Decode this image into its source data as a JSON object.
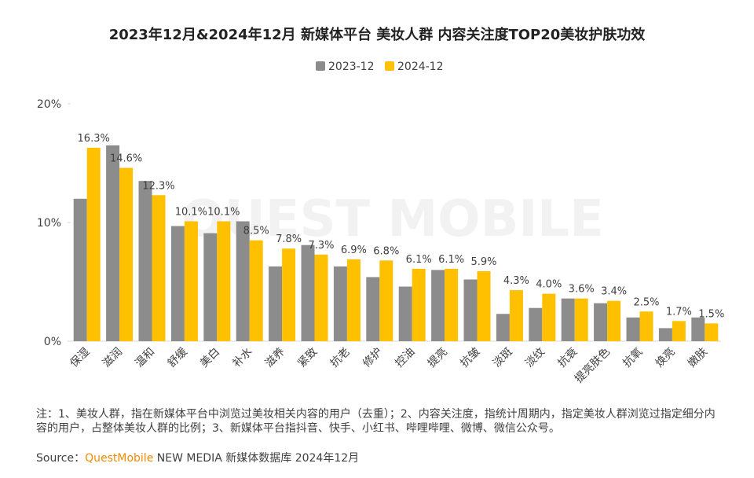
{
  "chart_data": {
    "type": "bar",
    "title": "2023年12月&2024年12月 新媒体平台 美妆人群 内容关注度TOP20美妆护肤功效",
    "categories": [
      "保湿",
      "滋润",
      "温和",
      "舒缓",
      "美白",
      "补水",
      "滋养",
      "紧致",
      "抗老",
      "修护",
      "控油",
      "提亮",
      "抗皱",
      "淡斑",
      "淡纹",
      "抗衰",
      "提亮肤色",
      "抗氧",
      "焕亮",
      "嫩肤"
    ],
    "series": [
      {
        "name": "2023-12",
        "color": "#8c8c8c",
        "values": [
          12.0,
          16.5,
          13.5,
          9.7,
          9.1,
          10.1,
          6.3,
          8.1,
          6.3,
          5.4,
          4.6,
          6.0,
          5.2,
          2.3,
          2.8,
          3.6,
          3.2,
          2.0,
          1.1,
          2.0
        ]
      },
      {
        "name": "2024-12",
        "color": "#ffc000",
        "values": [
          16.3,
          14.6,
          12.3,
          10.1,
          10.1,
          8.5,
          7.8,
          7.3,
          6.9,
          6.8,
          6.1,
          6.1,
          5.9,
          4.3,
          4.0,
          3.6,
          3.4,
          2.5,
          1.7,
          1.5
        ],
        "value_labels": [
          "16.3%",
          "14.6%",
          "12.3%",
          "10.1%",
          "10.1%",
          "8.5%",
          "7.8%",
          "7.3%",
          "6.9%",
          "6.8%",
          "6.1%",
          "6.1%",
          "5.9%",
          "4.3%",
          "4.0%",
          "3.6%",
          "3.4%",
          "2.5%",
          "1.7%",
          "1.5%"
        ]
      }
    ],
    "ylim": [
      0,
      20
    ],
    "yticks": [
      {
        "value": 0,
        "label": "0%"
      },
      {
        "value": 10,
        "label": "10%"
      },
      {
        "value": 20,
        "label": "20%"
      }
    ],
    "legend": "top",
    "watermark": "QUEST MOBILE",
    "note": "注：1、美妆人群，指在新媒体平台中浏览过美妆相关内容的用户（去重）；2、内容关注度，指统计周期内，指定美妆人群浏览过指定细分内容的用户，占整体美妆人群的比例；3、新媒体平台指抖音、快手、小红书、哔哩哔哩、微博、微信公众号。",
    "source": {
      "label": "Source：",
      "brand": "QuestMobile",
      "text": "NEW MEDIA 新媒体数据库 2024年12月"
    }
  }
}
